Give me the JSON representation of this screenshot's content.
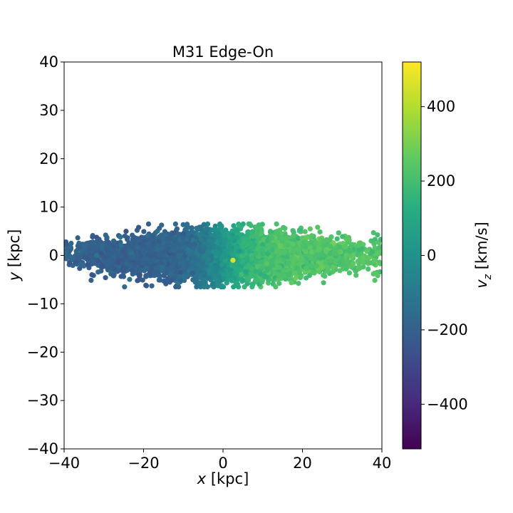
{
  "chart_data": {
    "type": "scatter",
    "title": "M31 Edge-On",
    "xlabel": {
      "var": "x",
      "unit": "[kpc]"
    },
    "ylabel": {
      "var": "y",
      "unit": "[kpc]"
    },
    "xlim": [
      -40,
      40
    ],
    "ylim": [
      -40,
      40
    ],
    "xticks": [
      -40,
      -20,
      0,
      20,
      40
    ],
    "yticks": [
      -40,
      -30,
      -20,
      -10,
      0,
      10,
      20,
      30,
      40
    ],
    "xtick_labels": [
      "−40",
      "−20",
      "0",
      "20",
      "40"
    ],
    "ytick_labels": [
      "−40",
      "−30",
      "−20",
      "−10",
      "0",
      "10",
      "20",
      "30",
      "40"
    ],
    "grid": false,
    "colormap": "viridis",
    "colorbar": {
      "label": {
        "var": "v",
        "sub": "z",
        "unit": "[km/s]"
      },
      "range": [
        -520,
        520
      ],
      "ticks": [
        -400,
        -200,
        0,
        200,
        400
      ],
      "tick_labels": [
        "−400",
        "−200",
        "0",
        "200",
        "400"
      ]
    },
    "points": {
      "count": 7000,
      "x_range": [
        -40,
        40
      ],
      "y_range": [
        -6.5,
        6.5
      ],
      "note_vz_gradient": [
        -200,
        230
      ],
      "outlier": {
        "x": 2.5,
        "y": -1,
        "vz": 470
      }
    }
  }
}
